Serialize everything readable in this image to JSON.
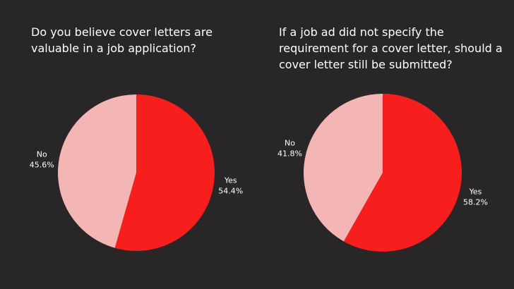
{
  "chart_data": [
    {
      "type": "pie",
      "title": "Do you believe cover letters are valuable in a job application?",
      "categories": [
        "Yes",
        "No"
      ],
      "values": [
        54.4,
        45.6
      ],
      "value_labels": [
        "54.4%",
        "45.6%"
      ],
      "colors": [
        "#f71e1e",
        "#f4b5b5"
      ]
    },
    {
      "type": "pie",
      "title": "If a job ad did not specify the requirement for a cover letter, should a cover letter still be submitted?",
      "categories": [
        "Yes",
        "No"
      ],
      "values": [
        58.2,
        41.8
      ],
      "value_labels": [
        "58.2%",
        "41.8%"
      ],
      "colors": [
        "#f71e1e",
        "#f4b5b5"
      ]
    }
  ]
}
